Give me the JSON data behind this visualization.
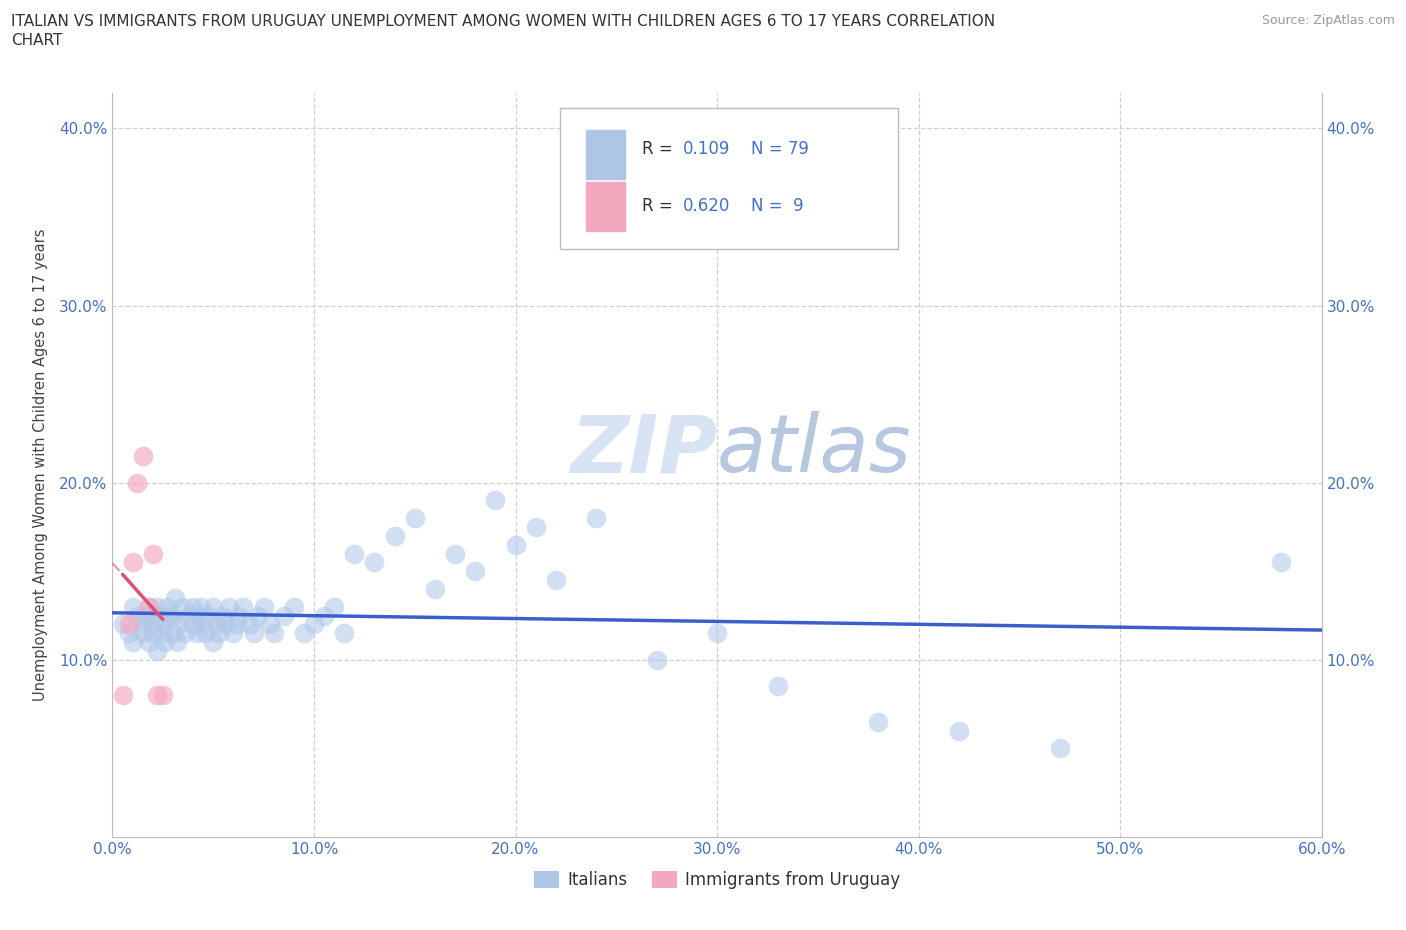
{
  "title_line1": "ITALIAN VS IMMIGRANTS FROM URUGUAY UNEMPLOYMENT AMONG WOMEN WITH CHILDREN AGES 6 TO 17 YEARS CORRELATION",
  "title_line2": "CHART",
  "source": "Source: ZipAtlas.com",
  "ylabel": "Unemployment Among Women with Children Ages 6 to 17 years",
  "xlim": [
    0.0,
    0.6
  ],
  "ylim": [
    0.0,
    0.42
  ],
  "xticks": [
    0.0,
    0.1,
    0.2,
    0.3,
    0.4,
    0.5,
    0.6
  ],
  "xticklabels": [
    "0.0%",
    "10.0%",
    "20.0%",
    "30.0%",
    "40.0%",
    "50.0%",
    "60.0%"
  ],
  "yticks": [
    0.1,
    0.2,
    0.3,
    0.4
  ],
  "yticklabels": [
    "10.0%",
    "20.0%",
    "30.0%",
    "40.0%"
  ],
  "italian_R": 0.109,
  "italian_N": 79,
  "uruguay_R": 0.62,
  "uruguay_N": 9,
  "italian_color": "#adc6e8",
  "uruguay_color": "#f4a8be",
  "italian_line_color": "#3a5fcd",
  "uruguay_line_color": "#e05070",
  "grid_color": "#d0d0d0",
  "background_color": "#ffffff",
  "italian_x": [
    0.005,
    0.008,
    0.01,
    0.01,
    0.012,
    0.015,
    0.015,
    0.016,
    0.018,
    0.018,
    0.02,
    0.02,
    0.022,
    0.022,
    0.023,
    0.025,
    0.025,
    0.026,
    0.027,
    0.028,
    0.03,
    0.03,
    0.031,
    0.032,
    0.033,
    0.035,
    0.036,
    0.038,
    0.04,
    0.04,
    0.042,
    0.043,
    0.044,
    0.045,
    0.046,
    0.048,
    0.05,
    0.05,
    0.052,
    0.053,
    0.055,
    0.056,
    0.058,
    0.06,
    0.062,
    0.063,
    0.065,
    0.068,
    0.07,
    0.072,
    0.075,
    0.078,
    0.08,
    0.085,
    0.09,
    0.095,
    0.1,
    0.105,
    0.11,
    0.115,
    0.12,
    0.13,
    0.14,
    0.15,
    0.16,
    0.17,
    0.18,
    0.19,
    0.2,
    0.21,
    0.22,
    0.24,
    0.27,
    0.3,
    0.33,
    0.38,
    0.42,
    0.47,
    0.58
  ],
  "italian_y": [
    0.12,
    0.115,
    0.13,
    0.11,
    0.125,
    0.115,
    0.12,
    0.125,
    0.11,
    0.13,
    0.12,
    0.115,
    0.13,
    0.105,
    0.125,
    0.115,
    0.12,
    0.11,
    0.13,
    0.125,
    0.115,
    0.125,
    0.135,
    0.11,
    0.12,
    0.13,
    0.115,
    0.125,
    0.13,
    0.12,
    0.115,
    0.125,
    0.13,
    0.12,
    0.115,
    0.125,
    0.11,
    0.13,
    0.12,
    0.115,
    0.125,
    0.12,
    0.13,
    0.115,
    0.12,
    0.125,
    0.13,
    0.12,
    0.115,
    0.125,
    0.13,
    0.12,
    0.115,
    0.125,
    0.13,
    0.115,
    0.12,
    0.125,
    0.13,
    0.115,
    0.16,
    0.155,
    0.17,
    0.18,
    0.14,
    0.16,
    0.15,
    0.19,
    0.165,
    0.175,
    0.145,
    0.18,
    0.1,
    0.115,
    0.085,
    0.065,
    0.06,
    0.05,
    0.155
  ],
  "uruguay_x": [
    0.005,
    0.008,
    0.01,
    0.012,
    0.015,
    0.018,
    0.02,
    0.022,
    0.025
  ],
  "uruguay_y": [
    0.08,
    0.12,
    0.155,
    0.2,
    0.215,
    0.13,
    0.16,
    0.08,
    0.08
  ]
}
